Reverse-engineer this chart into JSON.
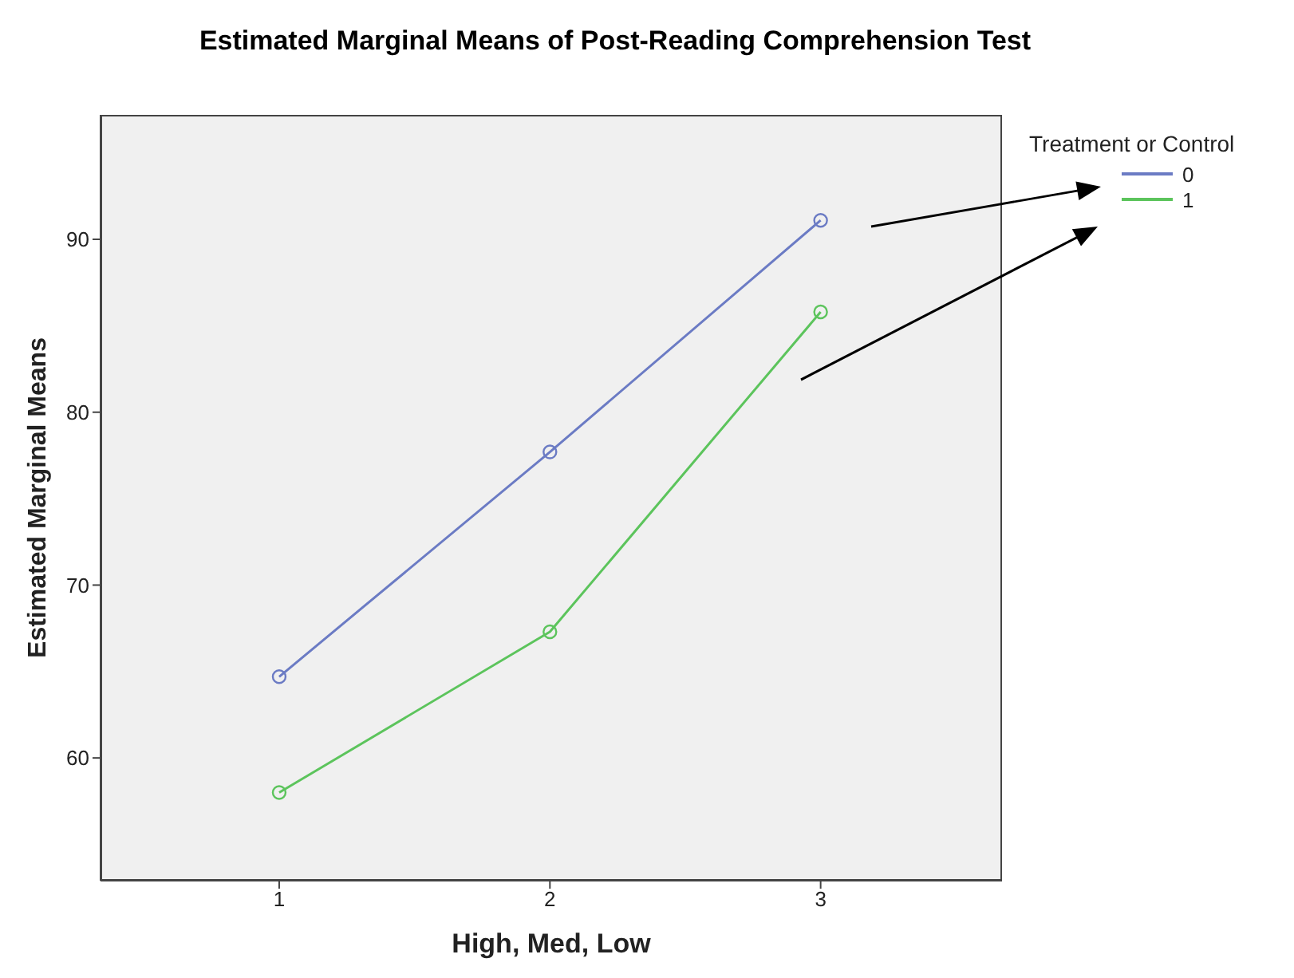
{
  "chart_data": {
    "type": "line",
    "title": "Estimated Marginal Means of Post-Reading Comprehension Test",
    "xlabel": "High, Med, Low",
    "ylabel": "Estimated Marginal Means",
    "legend_title": "Treatment or Control",
    "x": [
      1,
      2,
      3
    ],
    "series": [
      {
        "name": "0",
        "color": "#6b7bc4",
        "values": [
          64.7,
          77.7,
          91.1
        ]
      },
      {
        "name": "1",
        "color": "#5cc45c",
        "values": [
          58.0,
          67.3,
          85.8
        ]
      }
    ],
    "xlim": [
      0.34,
      3.67
    ],
    "xticks": [
      1,
      2,
      3
    ],
    "ylim": [
      52.9,
      97.2
    ],
    "yticks": [
      60,
      70,
      80,
      90
    ],
    "grid": false,
    "legend": "top right",
    "marker": "circle",
    "line_style": "solid"
  }
}
